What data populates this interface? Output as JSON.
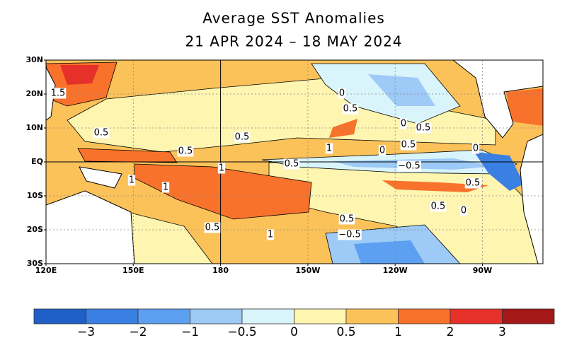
{
  "title": "Average SST Anomalies",
  "subtitle": "21 APR 2024 – 18 MAY 2024",
  "map": {
    "lat_labels": [
      "30N",
      "20N",
      "10N",
      "EQ",
      "10S",
      "20S",
      "30S"
    ],
    "lon_labels": [
      "120E",
      "150E",
      "180",
      "150W",
      "120W",
      "90W"
    ],
    "contour_labels": [
      "1.5",
      "0.5",
      "0.5",
      "0.5",
      "0.5",
      "1",
      "1",
      "1",
      "1",
      "0",
      "0.5",
      "0",
      "0.5",
      "0",
      "0.5",
      "−0.5",
      "0.5",
      "0.5",
      "0",
      "0.5",
      "−0.5",
      "1",
      "0.5",
      "0"
    ]
  },
  "colorbar": {
    "colors": [
      "#1f5fc8",
      "#3a80e2",
      "#5d9ff0",
      "#9dcaf6",
      "#d9f4fb",
      "#fdf5b0",
      "#fcc25a",
      "#f8722c",
      "#e6312a",
      "#a51818"
    ],
    "labels": [
      "−3",
      "−2",
      "−1",
      "−0.5",
      "0",
      "0.5",
      "1",
      "2",
      "3"
    ]
  }
}
